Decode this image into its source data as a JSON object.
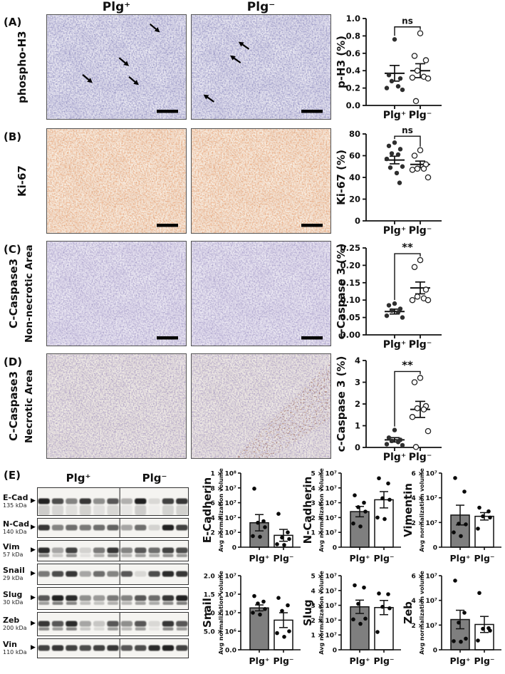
{
  "headers": {
    "plus": "Plg⁺",
    "minus": "Plg⁻"
  },
  "rows": [
    {
      "letter": "(A)",
      "label": "phospho-H3",
      "palette": "a",
      "images": [
        {
          "scalebar": true,
          "arrows": [
            [
              0.79,
              0.15,
              40
            ],
            [
              0.57,
              0.47,
              40
            ],
            [
              0.31,
              0.63,
              40
            ],
            [
              0.64,
              0.65,
              40
            ]
          ]
        },
        {
          "scalebar": true,
          "arrows": [
            [
              0.36,
              0.28,
              215
            ],
            [
              0.3,
              0.41,
              215
            ],
            [
              0.11,
              0.78,
              215
            ]
          ]
        }
      ]
    },
    {
      "letter": "(B)",
      "label": "Ki-67",
      "palette": "b",
      "images": [
        {
          "scalebar": true,
          "arrows": []
        },
        {
          "scalebar": true,
          "arrows": []
        }
      ]
    },
    {
      "letter": "(C)",
      "label": "C-Caspase3",
      "label2": "Non-necrotic Area",
      "palette": "c",
      "images": [
        {
          "scalebar": true,
          "arrows": []
        },
        {
          "scalebar": true,
          "arrows": []
        }
      ]
    },
    {
      "letter": "(D)",
      "label": "C-Caspase3",
      "label2": "Necrotic Area",
      "palette": "d",
      "images": [
        {
          "scalebar": false,
          "arrows": []
        },
        {
          "scalebar": false,
          "arrows": [],
          "extra_dots": true
        }
      ]
    }
  ],
  "panel_e": {
    "letter": "(E)",
    "plus": "Plg⁺",
    "minus": "Plg⁻",
    "marker_icon": "▶",
    "blots": [
      {
        "name": "E-Cad",
        "kda": "135 kDa",
        "doublet": false,
        "smear": true,
        "lanes": [
          0.95,
          0.75,
          0.5,
          0.85,
          0.45,
          0.7,
          0.3,
          0.95,
          0.12,
          0.8,
          0.85
        ]
      },
      {
        "name": "N-Cad",
        "kda": "140 kDa",
        "doublet": false,
        "smear": false,
        "lanes": [
          0.85,
          0.5,
          0.6,
          0.55,
          0.6,
          0.65,
          0.35,
          0.6,
          0.15,
          0.95,
          0.8
        ]
      },
      {
        "name": "Vim",
        "kda": "57 kDa",
        "doublet": true,
        "smear": false,
        "lanes": [
          0.9,
          0.35,
          0.8,
          0.15,
          0.55,
          0.85,
          0.5,
          0.7,
          0.6,
          0.8,
          0.75
        ]
      },
      {
        "name": "Snail",
        "kda": "29 kDa",
        "doublet": false,
        "smear": false,
        "lanes": [
          0.55,
          0.75,
          0.85,
          0.35,
          0.6,
          0.5,
          0.7,
          0.12,
          0.75,
          0.9,
          0.85
        ]
      },
      {
        "name": "Slug",
        "kda": "30 kDa",
        "doublet": true,
        "smear": false,
        "lanes": [
          0.7,
          0.95,
          0.9,
          0.45,
          0.4,
          0.55,
          0.5,
          0.7,
          0.6,
          0.85,
          0.95
        ]
      },
      {
        "name": "Zeb",
        "kda": "200 kDa",
        "doublet": true,
        "smear": false,
        "lanes": [
          0.85,
          0.7,
          0.9,
          0.35,
          0.2,
          0.7,
          0.45,
          0.7,
          0.12,
          0.85,
          0.7
        ]
      },
      {
        "name": "Vin",
        "kda": "110 kDa",
        "doublet": false,
        "smear": false,
        "lanes": [
          0.8,
          0.85,
          0.8,
          0.75,
          0.8,
          0.85,
          0.7,
          0.75,
          0.9,
          0.95,
          0.8
        ]
      }
    ]
  },
  "chart_data": [
    {
      "type": "scatter",
      "ylabel": "p-H3 (%)",
      "sig": "ns",
      "ylim": [
        0,
        1.0
      ],
      "yticks": [
        0,
        0.2,
        0.4,
        0.6,
        0.8,
        1.0
      ],
      "ytick_labels": [
        "0.0",
        "0.2",
        "0.4",
        "0.6",
        "0.8",
        "1.0"
      ],
      "groups": [
        {
          "label": "Plg⁺",
          "style": "filled",
          "mean": 0.37,
          "sem": 0.09,
          "points": [
            0.76,
            0.35,
            0.31,
            0.28,
            0.22,
            0.2,
            0.18
          ]
        },
        {
          "label": "Plg⁻",
          "style": "open",
          "mean": 0.4,
          "sem": 0.08,
          "points": [
            0.83,
            0.57,
            0.52,
            0.4,
            0.33,
            0.32,
            0.31,
            0.05
          ]
        }
      ]
    },
    {
      "type": "scatter",
      "ylabel": "Ki-67 (%)",
      "sig": "ns",
      "ylim": [
        0,
        80
      ],
      "yticks": [
        0,
        20,
        40,
        60,
        80
      ],
      "ytick_labels": [
        "0",
        "20",
        "40",
        "60",
        "80"
      ],
      "groups": [
        {
          "label": "Plg⁺",
          "style": "filled",
          "mean": 56,
          "sem": 3.5,
          "points": [
            72,
            69,
            66,
            62,
            61,
            57,
            50,
            49,
            44,
            35
          ]
        },
        {
          "label": "Plg⁻",
          "style": "open",
          "mean": 52,
          "sem": 3,
          "points": [
            65,
            60,
            52,
            48,
            48,
            47,
            40
          ]
        }
      ]
    },
    {
      "type": "scatter",
      "ylabel": "c-Caspase 3 (%)",
      "sig": "**",
      "ylim": [
        0,
        0.25
      ],
      "yticks": [
        0,
        0.05,
        0.1,
        0.15,
        0.2,
        0.25
      ],
      "ytick_labels": [
        "0.00",
        "0.05",
        "0.10",
        "0.15",
        "0.20",
        "0.25"
      ],
      "groups": [
        {
          "label": "Plg⁺",
          "style": "filled",
          "mean": 0.067,
          "sem": 0.007,
          "points": [
            0.09,
            0.085,
            0.075,
            0.07,
            0.065,
            0.055,
            0.05
          ]
        },
        {
          "label": "Plg⁻",
          "style": "open",
          "mean": 0.135,
          "sem": 0.017,
          "points": [
            0.215,
            0.195,
            0.13,
            0.11,
            0.105,
            0.1,
            0.1
          ]
        }
      ]
    },
    {
      "type": "scatter",
      "ylabel": "c-Caspase 3 (%)",
      "sig": "**",
      "ylim": [
        0,
        4
      ],
      "yticks": [
        0,
        1,
        2,
        3,
        4
      ],
      "ytick_labels": [
        "0",
        "1",
        "2",
        "3",
        "4"
      ],
      "groups": [
        {
          "label": "Plg⁺",
          "style": "filled",
          "mean": 0.35,
          "sem": 0.1,
          "points": [
            0.8,
            0.45,
            0.35,
            0.3,
            0.25,
            0.15,
            0.1
          ]
        },
        {
          "label": "Plg⁻",
          "style": "open",
          "mean": 1.75,
          "sem": 0.37,
          "points": [
            3.2,
            3.0,
            1.9,
            1.8,
            1.75,
            1.4,
            0.75,
            0.02
          ]
        }
      ]
    },
    {
      "type": "bar",
      "title": "E-Cadherin",
      "ylabel": "Avg normalization volume",
      "ylim": [
        0,
        100000000
      ],
      "yticks": [
        0,
        20000000,
        40000000,
        60000000,
        80000000,
        100000000
      ],
      "ytick_labels": [
        "0",
        "2 × 10⁷",
        "4 × 10⁷",
        "6 × 10⁷",
        "8 × 10⁷",
        "1 × 10⁸"
      ],
      "groups": [
        {
          "label": "Plg⁺",
          "fill": "gray",
          "value": 33000000,
          "sem": 11000000,
          "points": [
            79000000,
            35000000,
            33000000,
            27000000,
            15000000,
            14000000
          ]
        },
        {
          "label": "Plg⁻",
          "fill": "white",
          "value": 16000000,
          "sem": 8000000,
          "points": [
            45000000,
            20000000,
            13000000,
            11000000,
            4000000,
            3000000
          ]
        }
      ]
    },
    {
      "type": "bar",
      "title": "N-Cadherin",
      "ylabel": "Avg normalization volume",
      "ylim": [
        0,
        50000000
      ],
      "yticks": [
        0,
        10000000,
        20000000,
        30000000,
        40000000,
        50000000
      ],
      "ytick_labels": [
        "0",
        "1 × 10⁷",
        "2 × 10⁷",
        "3 × 10⁷",
        "4 × 10⁷",
        "5 × 10⁷"
      ],
      "groups": [
        {
          "label": "Plg⁺",
          "fill": "gray",
          "value": 24000000,
          "sem": 3500000,
          "points": [
            35000000,
            30000000,
            27000000,
            24000000,
            16000000,
            14000000
          ]
        },
        {
          "label": "Plg⁻",
          "fill": "white",
          "value": 32000000,
          "sem": 5500000,
          "points": [
            46500000,
            43000000,
            33000000,
            32000000,
            20000000,
            19000000
          ]
        }
      ]
    },
    {
      "type": "bar",
      "title": "Vimentin",
      "ylabel": "Avg normalization volume",
      "ylim": [
        0,
        60000000
      ],
      "yticks": [
        0,
        20000000,
        40000000,
        60000000
      ],
      "ytick_labels": [
        "0",
        "2 × 10⁷",
        "4 × 10⁷",
        "6 × 10⁷"
      ],
      "groups": [
        {
          "label": "Plg⁺",
          "fill": "gray",
          "value": 26000000,
          "sem": 8000000,
          "points": [
            56000000,
            45000000,
            19000000,
            18500000,
            12000000,
            9000000
          ]
        },
        {
          "label": "Plg⁻",
          "fill": "white",
          "value": 25000000,
          "sem": 3000000,
          "points": [
            32000000,
            29000000,
            25000000,
            24000000,
            15000000
          ]
        }
      ]
    },
    {
      "type": "bar",
      "title": "Snail",
      "ylabel": "Avg normalization volume",
      "ylim": [
        0,
        20000000
      ],
      "yticks": [
        0,
        5000000,
        10000000,
        15000000,
        20000000
      ],
      "ytick_labels": [
        "0.0",
        "5.0 × 10⁶",
        "1.0 × 10⁷",
        "1.5 × 10⁷",
        "2.0 × 10⁷"
      ],
      "groups": [
        {
          "label": "Plg⁺",
          "fill": "gray",
          "value": 11300000,
          "sem": 800000,
          "points": [
            14500000,
            13000000,
            12500000,
            11000000,
            10000000,
            9500000
          ]
        },
        {
          "label": "Plg⁻",
          "fill": "white",
          "value": 8000000,
          "sem": 2000000,
          "points": [
            14000000,
            12000000,
            10500000,
            5000000,
            4500000,
            3500000
          ]
        }
      ]
    },
    {
      "type": "bar",
      "title": "Slug",
      "ylabel": "Avg normalization volume",
      "ylim": [
        0,
        50000000
      ],
      "yticks": [
        0,
        10000000,
        20000000,
        30000000,
        40000000,
        50000000
      ],
      "ytick_labels": [
        "0",
        "1 × 10⁷",
        "2 × 10⁷",
        "3 × 10⁷",
        "4 × 10⁷",
        "5 × 10⁷"
      ],
      "groups": [
        {
          "label": "Plg⁺",
          "fill": "gray",
          "value": 29000000,
          "sem": 4500000,
          "points": [
            43500000,
            42000000,
            31000000,
            21000000,
            20500000,
            17500000
          ]
        },
        {
          "label": "Plg⁻",
          "fill": "white",
          "value": 28500000,
          "sem": 4800000,
          "points": [
            38000000,
            37500000,
            29000000,
            28000000,
            12000000
          ]
        }
      ]
    },
    {
      "type": "bar",
      "title": "Zeb",
      "ylabel": "Avg normalization volume",
      "ylim": [
        0,
        60000000
      ],
      "yticks": [
        0,
        20000000,
        40000000,
        60000000
      ],
      "ytick_labels": [
        "0",
        "2 × 10⁷",
        "4 × 10⁷",
        "6 × 10⁷"
      ],
      "groups": [
        {
          "label": "Plg⁺",
          "fill": "gray",
          "value": 24500000,
          "sem": 7500000,
          "points": [
            56000000,
            30000000,
            22000000,
            9000000,
            7000000,
            6500000
          ]
        },
        {
          "label": "Plg⁻",
          "fill": "white",
          "value": 20500000,
          "sem": 6500000,
          "points": [
            46000000,
            17500000,
            17000000,
            15500000,
            7500000
          ]
        }
      ]
    }
  ],
  "colors": {
    "bar_plus": "#7f7f7f",
    "bar_minus": "#ffffff",
    "point": "#2e2e2e",
    "axis": "#111111",
    "band": "#141414"
  },
  "histology_palettes": {
    "a": {
      "base": "#dcdaea",
      "patch": "#f4f3f8",
      "fine": "#9694c4",
      "dots": "#615fa0"
    },
    "b": {
      "base": "#f2e3d5",
      "patch": "#fbf5ec",
      "fine": "#e9a578",
      "dots": "#bf7347"
    },
    "c": {
      "base": "#e2dded",
      "patch": "#f3f1f7",
      "fine": "#a9a0cb",
      "dots": "#7e74ab"
    },
    "d": {
      "base": "#e9e3df",
      "patch": "#f5f1ea",
      "fine": "#ab9dc2",
      "dots": "#8677ae"
    },
    "d_extra": "#8a4a2e"
  }
}
